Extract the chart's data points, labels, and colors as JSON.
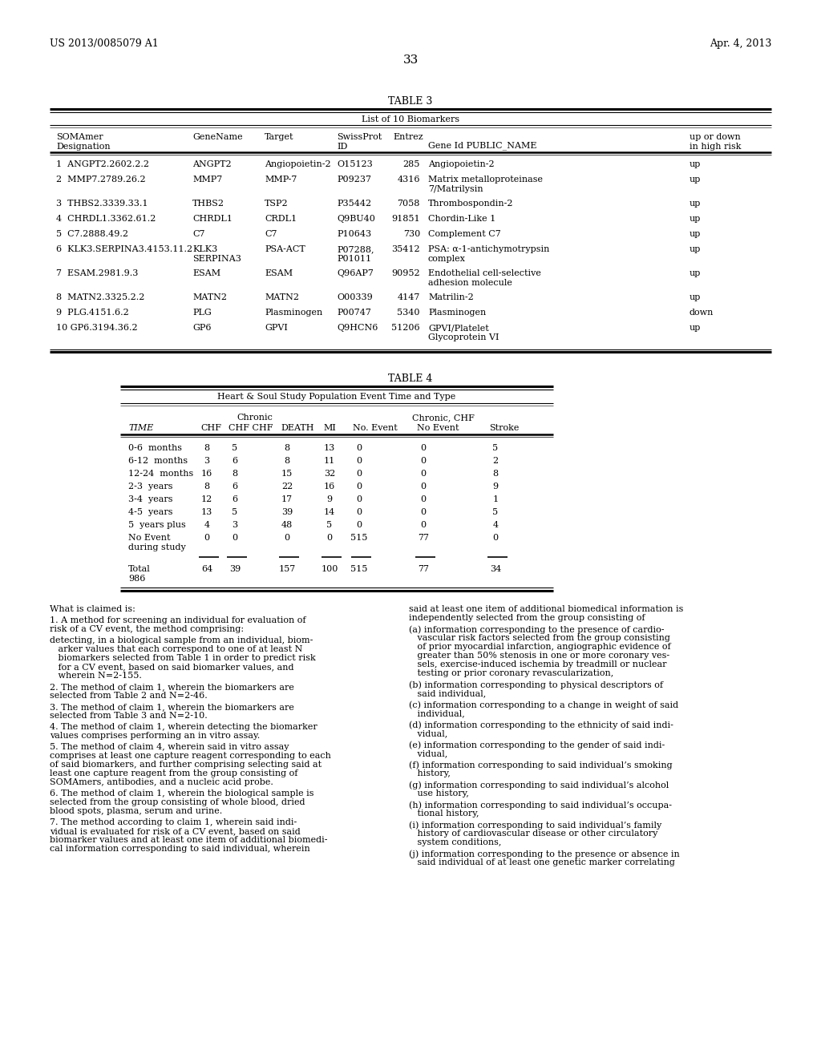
{
  "page_header_left": "US 2013/0085079 A1",
  "page_header_right": "Apr. 4, 2013",
  "page_number": "33",
  "background_color": "#ffffff",
  "text_color": "#000000",
  "table3_title": "TABLE 3",
  "table3_subtitle": "List of 10 Biomarkers",
  "table4_title": "TABLE 4",
  "table4_subtitle": "Heart & Soul Study Population Event Time and Type",
  "table3_rows": [
    [
      "1  ANGPT2.2602.2.2",
      "ANGPT2",
      "Angiopoietin-2",
      "O15123",
      "285",
      "Angiopoietin-2",
      "up"
    ],
    [
      "2  MMP7.2789.26.2",
      "MMP7",
      "MMP-7",
      "P09237",
      "4316",
      "Matrix metalloproteinase\n7/Matrilysin",
      "up"
    ],
    [
      "3  THBS2.3339.33.1",
      "THBS2",
      "TSP2",
      "P35442",
      "7058",
      "Thrombospondin-2",
      "up"
    ],
    [
      "4  CHRDL1.3362.61.2",
      "CHRDL1",
      "CRDL1",
      "Q9BU40",
      "91851",
      "Chordin-Like 1",
      "up"
    ],
    [
      "5  C7.2888.49.2",
      "C7",
      "C7",
      "P10643",
      "730",
      "Complement C7",
      "up"
    ],
    [
      "6  KLK3.SERPINA3.4153.11.2",
      "KLK3\nSERPINA3",
      "PSA-ACT",
      "P07288,\nP01011",
      "35412",
      "PSA: α-1-antichymotrypsin\ncomplex",
      "up"
    ],
    [
      "7  ESAM.2981.9.3",
      "ESAM",
      "ESAM",
      "Q96AP7",
      "90952",
      "Endothelial cell-selective\nadhesion molecule",
      "up"
    ],
    [
      "8  MATN2.3325.2.2",
      "MATN2",
      "MATN2",
      "O00339",
      "4147",
      "Matrilin-2",
      "up"
    ],
    [
      "9  PLG.4151.6.2",
      "PLG",
      "Plasminogen",
      "P00747",
      "5340",
      "Plasminogen",
      "down"
    ],
    [
      "10 GP6.3194.36.2",
      "GP6",
      "GPVI",
      "Q9HCN6",
      "51206",
      "GPVI/Platelet\nGlycoprotein VI",
      "up"
    ]
  ],
  "table4_rows": [
    [
      "0-6  months",
      "8",
      "5",
      "8",
      "13",
      "0",
      "0",
      "5"
    ],
    [
      "6-12  months",
      "3",
      "6",
      "8",
      "11",
      "0",
      "0",
      "2"
    ],
    [
      "12-24  months",
      "16",
      "8",
      "15",
      "32",
      "0",
      "0",
      "8"
    ],
    [
      "2-3  years",
      "8",
      "6",
      "22",
      "16",
      "0",
      "0",
      "9"
    ],
    [
      "3-4  years",
      "12",
      "6",
      "17",
      "9",
      "0",
      "0",
      "1"
    ],
    [
      "4-5  years",
      "13",
      "5",
      "39",
      "14",
      "0",
      "0",
      "5"
    ],
    [
      "5  years plus",
      "4",
      "3",
      "48",
      "5",
      "0",
      "0",
      "4"
    ],
    [
      "No Event\nduring study",
      "0",
      "0",
      "0",
      "0",
      "515",
      "77",
      "0"
    ]
  ],
  "table4_total": [
    "Total\n986",
    "64",
    "39",
    "157",
    "100",
    "515",
    "77",
    "34"
  ]
}
